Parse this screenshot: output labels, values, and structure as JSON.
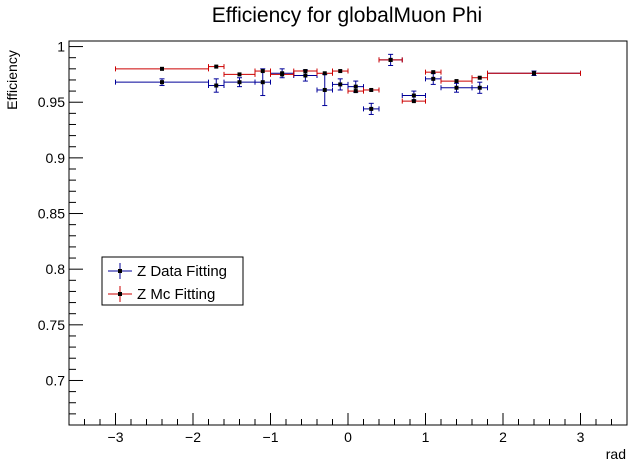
{
  "chart_data": {
    "type": "scatter",
    "title": "Efficiency for globalMuon Phi",
    "xlabel": "rad",
    "ylabel": "Efficiency",
    "xlim": [
      -3.6,
      3.6
    ],
    "ylim": [
      0.66,
      1.005
    ],
    "x_ticks": [
      -3,
      -2,
      -1,
      0,
      1,
      2,
      3
    ],
    "x_tick_labels": [
      "−3",
      "−2",
      "−1",
      "0",
      "1",
      "2",
      "3"
    ],
    "y_ticks": [
      0.7,
      0.75,
      0.8,
      0.85,
      0.9,
      0.95,
      1.0
    ],
    "y_tick_labels": [
      "0.7",
      "0.75",
      "0.8",
      "0.85",
      "0.9",
      "0.95",
      "1"
    ],
    "grid": false,
    "legend_position": "lower-left",
    "series": [
      {
        "name": "Z Data Fitting",
        "color": "#000099",
        "points": [
          {
            "x": -2.4,
            "xerr": 0.6,
            "y": 0.968,
            "yerr": 0.003
          },
          {
            "x": -1.7,
            "xerr": 0.1,
            "y": 0.965,
            "yerr": 0.006
          },
          {
            "x": -1.4,
            "xerr": 0.2,
            "y": 0.968,
            "yerr": 0.004
          },
          {
            "x": -1.1,
            "xerr": 0.1,
            "y": 0.968,
            "yerr": 0.012
          },
          {
            "x": -0.85,
            "xerr": 0.15,
            "y": 0.976,
            "yerr": 0.004
          },
          {
            "x": -0.55,
            "xerr": 0.15,
            "y": 0.974,
            "yerr": 0.005
          },
          {
            "x": -0.3,
            "xerr": 0.1,
            "y": 0.961,
            "yerr": 0.014
          },
          {
            "x": -0.1,
            "xerr": 0.1,
            "y": 0.966,
            "yerr": 0.005
          },
          {
            "x": 0.1,
            "xerr": 0.1,
            "y": 0.964,
            "yerr": 0.005
          },
          {
            "x": 0.3,
            "xerr": 0.1,
            "y": 0.944,
            "yerr": 0.005
          },
          {
            "x": 0.55,
            "xerr": 0.15,
            "y": 0.988,
            "yerr": 0.005
          },
          {
            "x": 0.85,
            "xerr": 0.15,
            "y": 0.956,
            "yerr": 0.004
          },
          {
            "x": 1.1,
            "xerr": 0.1,
            "y": 0.971,
            "yerr": 0.005
          },
          {
            "x": 1.4,
            "xerr": 0.2,
            "y": 0.963,
            "yerr": 0.004
          },
          {
            "x": 1.7,
            "xerr": 0.1,
            "y": 0.963,
            "yerr": 0.005
          },
          {
            "x": 2.4,
            "xerr": 0.6,
            "y": 0.976,
            "yerr": 0.002
          }
        ]
      },
      {
        "name": "Z Mc Fitting",
        "color": "#cc0000",
        "points": [
          {
            "x": -2.4,
            "xerr": 0.6,
            "y": 0.98,
            "yerr": 0.001
          },
          {
            "x": -1.7,
            "xerr": 0.1,
            "y": 0.982,
            "yerr": 0.001
          },
          {
            "x": -1.4,
            "xerr": 0.2,
            "y": 0.975,
            "yerr": 0.001
          },
          {
            "x": -1.1,
            "xerr": 0.1,
            "y": 0.978,
            "yerr": 0.001
          },
          {
            "x": -0.85,
            "xerr": 0.15,
            "y": 0.975,
            "yerr": 0.001
          },
          {
            "x": -0.55,
            "xerr": 0.15,
            "y": 0.978,
            "yerr": 0.001
          },
          {
            "x": -0.3,
            "xerr": 0.1,
            "y": 0.976,
            "yerr": 0.001
          },
          {
            "x": -0.1,
            "xerr": 0.1,
            "y": 0.978,
            "yerr": 0.001
          },
          {
            "x": 0.1,
            "xerr": 0.1,
            "y": 0.96,
            "yerr": 0.001
          },
          {
            "x": 0.3,
            "xerr": 0.1,
            "y": 0.961,
            "yerr": 0.001
          },
          {
            "x": 0.55,
            "xerr": 0.15,
            "y": 0.988,
            "yerr": 0.001
          },
          {
            "x": 0.85,
            "xerr": 0.15,
            "y": 0.951,
            "yerr": 0.001
          },
          {
            "x": 1.1,
            "xerr": 0.1,
            "y": 0.977,
            "yerr": 0.001
          },
          {
            "x": 1.4,
            "xerr": 0.2,
            "y": 0.969,
            "yerr": 0.001
          },
          {
            "x": 1.7,
            "xerr": 0.1,
            "y": 0.972,
            "yerr": 0.001
          },
          {
            "x": 2.4,
            "xerr": 0.6,
            "y": 0.976,
            "yerr": 0.001
          }
        ]
      }
    ]
  }
}
